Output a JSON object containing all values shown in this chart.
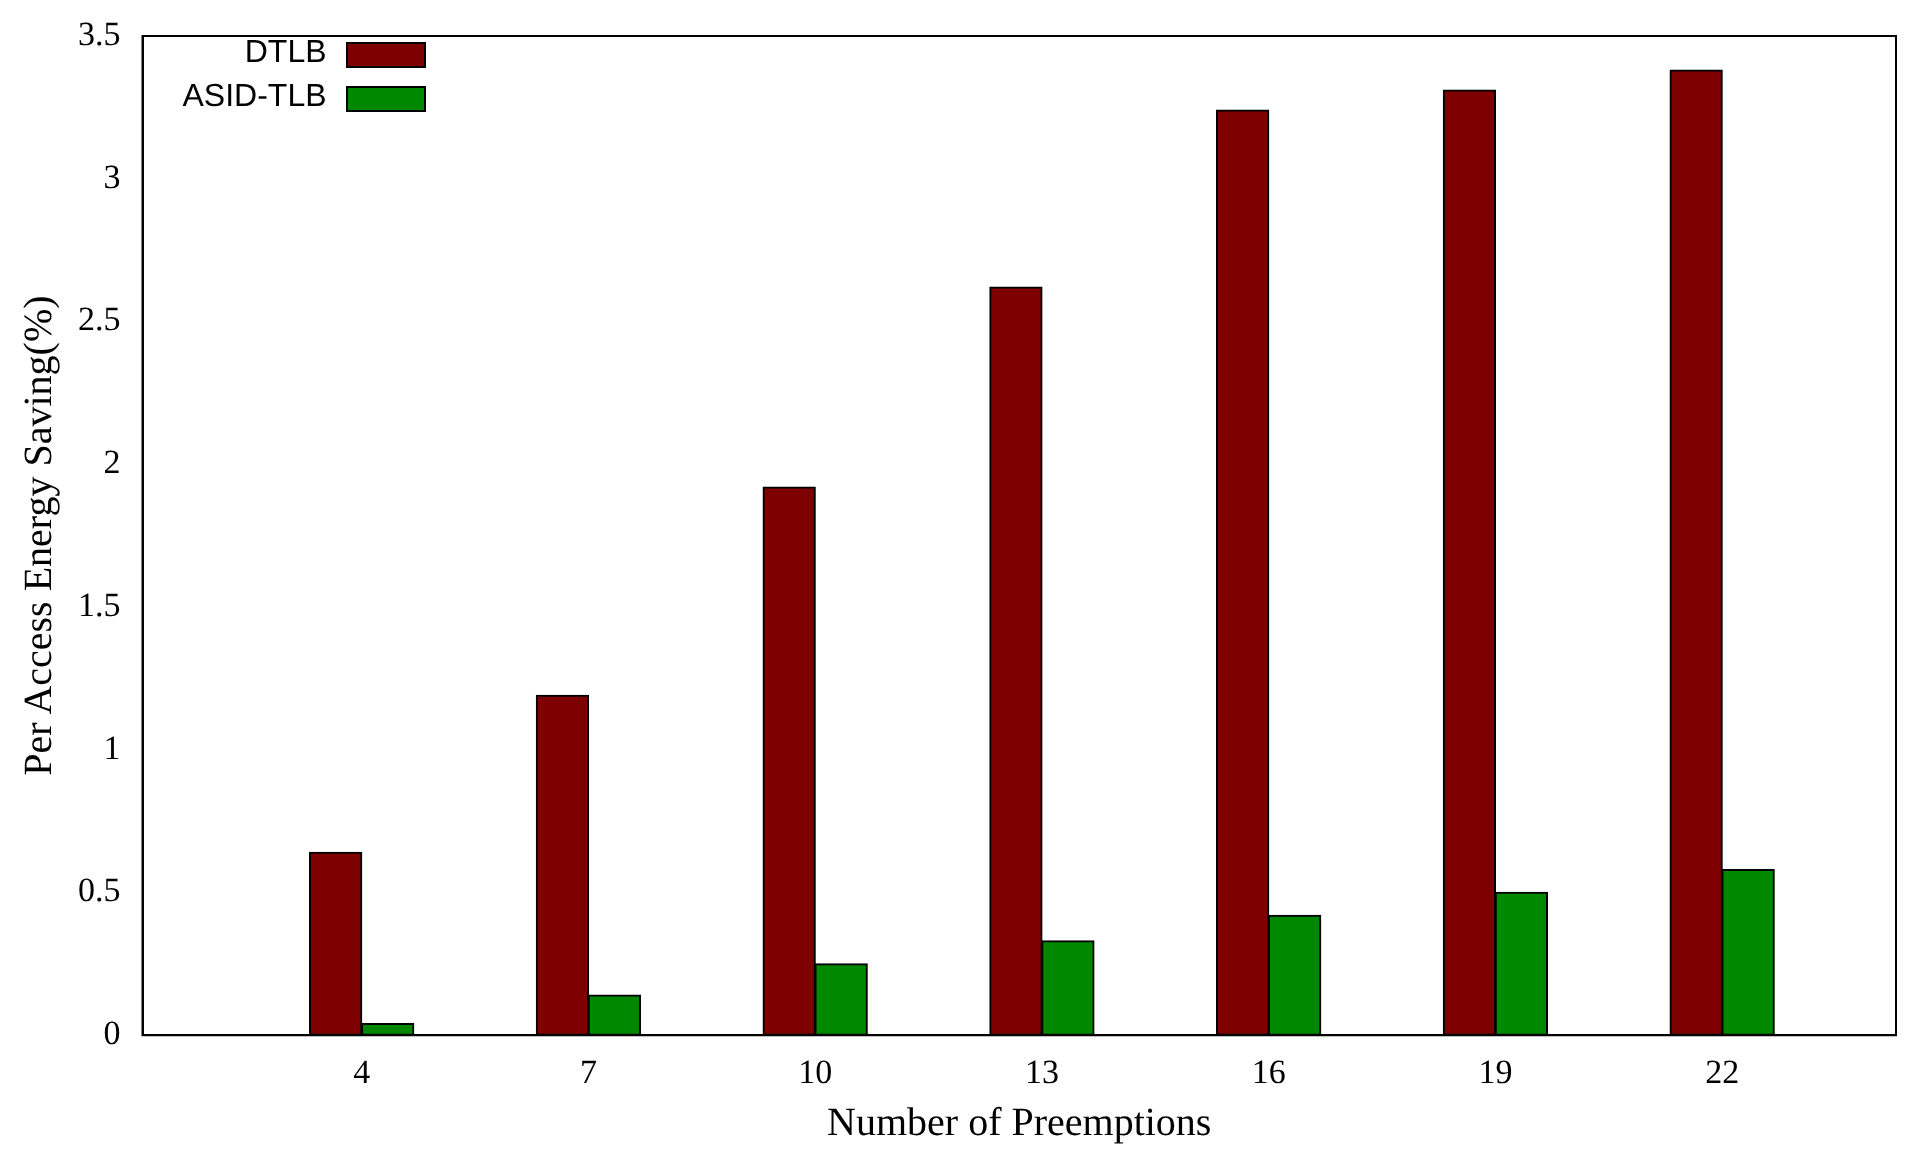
{
  "chart_data": {
    "type": "bar",
    "xlabel": "Number of Preemptions",
    "ylabel": "Per Access Energy Saving(%)",
    "x": [
      4,
      7,
      10,
      13,
      16,
      19,
      22
    ],
    "series": [
      {
        "name": "DTLB",
        "color": "#7f0000",
        "values": [
          0.64,
          1.19,
          1.92,
          2.62,
          3.24,
          3.31,
          3.38
        ]
      },
      {
        "name": "ASID-TLB",
        "color": "#008800",
        "values": [
          0.04,
          0.14,
          0.25,
          0.33,
          0.42,
          0.5,
          0.58
        ]
      }
    ],
    "xlim": [
      1.1,
      24.3
    ],
    "xticks": [
      4,
      7,
      10,
      13,
      16,
      19,
      22
    ],
    "ylim": [
      0,
      3.5
    ],
    "yticks": [
      0,
      0.5,
      1,
      1.5,
      2,
      2.5,
      3,
      3.5
    ],
    "grid": false,
    "legend": "top left"
  }
}
